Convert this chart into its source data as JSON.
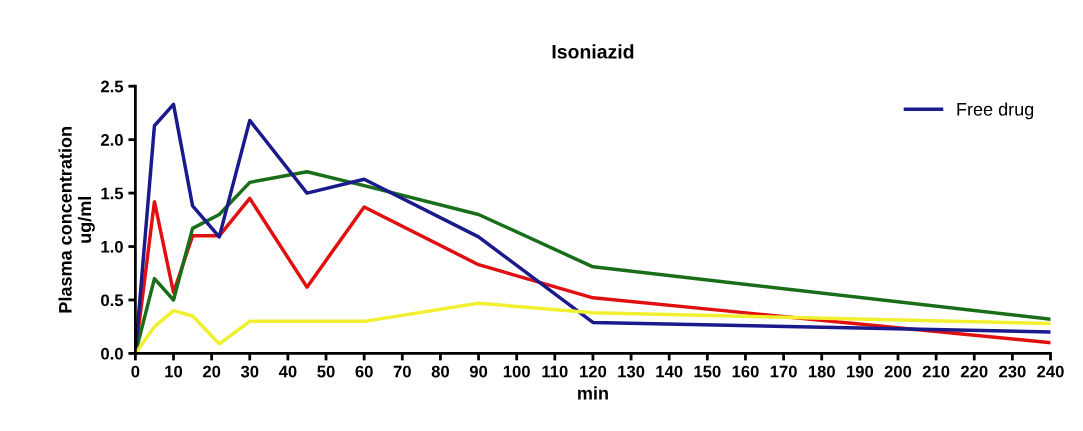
{
  "chart_data": {
    "type": "line",
    "title": "Isoniazid",
    "xlabel": "min",
    "ylabel": "Plasma concentration\nug/ml",
    "x": [
      0,
      5,
      10,
      15,
      22,
      30,
      45,
      60,
      90,
      120,
      240
    ],
    "series": [
      {
        "color": "#e01010",
        "values": [
          0,
          1.42,
          0.57,
          1.1,
          1.1,
          1.45,
          0.62,
          1.37,
          0.83,
          0.52,
          0.1
        ]
      },
      {
        "color": "#1a6e1a",
        "values": [
          0,
          0.7,
          0.5,
          1.17,
          1.3,
          1.6,
          1.7,
          1.57,
          1.3,
          0.81,
          0.32
        ]
      },
      {
        "name": "Free drug",
        "color": "#1a1a8c",
        "values": [
          0,
          2.13,
          2.33,
          1.38,
          1.09,
          2.18,
          1.5,
          1.63,
          1.09,
          0.29,
          0.2
        ]
      },
      {
        "color": "#f0f030",
        "values": [
          0,
          0.25,
          0.4,
          0.35,
          0.09,
          0.3,
          0.3,
          0.3,
          0.47,
          0.38,
          0.28
        ]
      }
    ],
    "xlim": [
      0,
      240
    ],
    "xticks": [
      0,
      10,
      20,
      30,
      40,
      50,
      60,
      70,
      80,
      90,
      100,
      110,
      120,
      130,
      140,
      150,
      160,
      170,
      180,
      190,
      200,
      210,
      220,
      230,
      240
    ],
    "ylim": [
      0,
      2.5
    ],
    "yticks": [
      {
        "value": 0,
        "label": "0.0"
      },
      {
        "value": 0.5,
        "label": "0.5"
      },
      {
        "value": 1,
        "label": "1.0"
      },
      {
        "value": 1.5,
        "label": "1.5"
      },
      {
        "value": 2,
        "label": "2.0"
      },
      {
        "value": 2.5,
        "label": "2.5"
      }
    ],
    "legend": "top right",
    "grid": false,
    "marker": "none",
    "line_style": "solid"
  }
}
